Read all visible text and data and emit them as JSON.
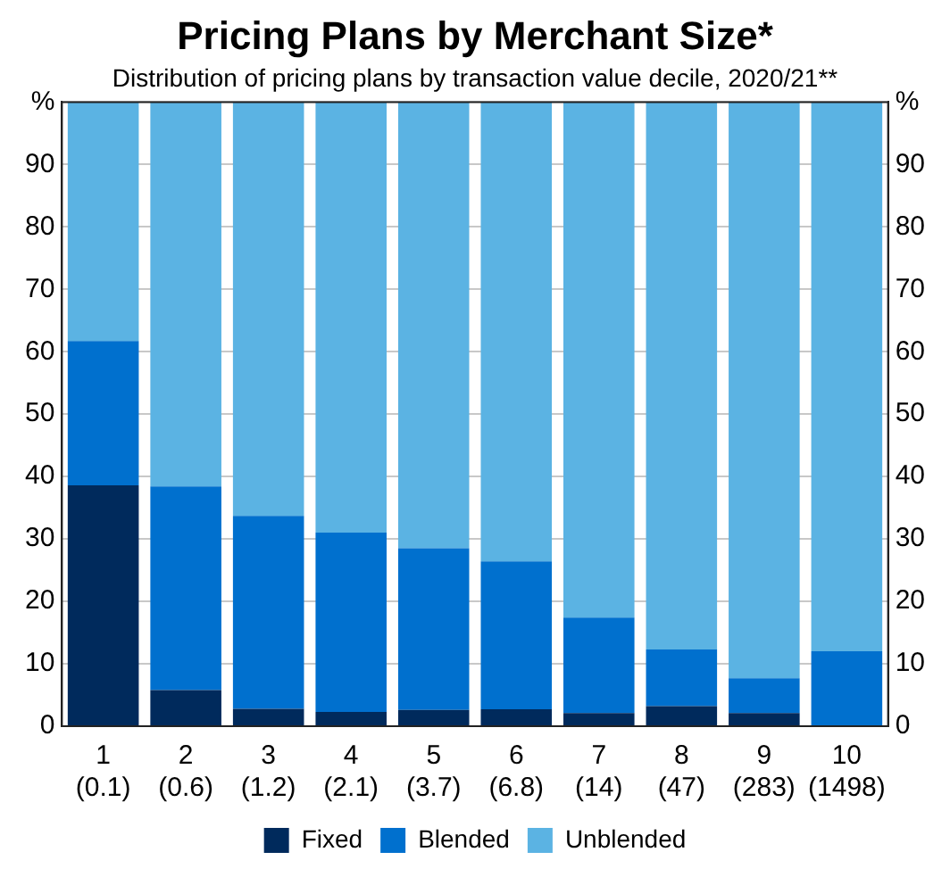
{
  "chart_data": {
    "type": "bar",
    "title": "Pricing Plans by Merchant Size*",
    "subtitle": "Distribution of pricing plans by transaction value decile, 2020/21**",
    "categories": [
      "1\n(0.1)",
      "2\n(0.6)",
      "3\n(1.2)",
      "4\n(2.1)",
      "5\n(3.7)",
      "6\n(6.8)",
      "7\n(14)",
      "8\n(47)",
      "9\n(283)",
      "10\n(1498)"
    ],
    "stacked": true,
    "series": [
      {
        "name": "Fixed",
        "color": "#002a5c",
        "values": [
          38.6,
          5.8,
          2.8,
          2.3,
          2.6,
          2.7,
          2.1,
          3.2,
          2.1,
          0
        ]
      },
      {
        "name": "Blended",
        "color": "#0070ce",
        "values": [
          23.1,
          32.6,
          30.9,
          28.7,
          25.9,
          23.7,
          15.3,
          9.1,
          5.6,
          12.0
        ]
      },
      {
        "name": "Unblended",
        "color": "#5bb3e3",
        "values": [
          38.3,
          61.6,
          66.3,
          69.0,
          71.5,
          73.6,
          82.6,
          87.7,
          92.3,
          88.0
        ]
      }
    ],
    "ylim": [
      0,
      100
    ],
    "yticks": [
      0,
      10,
      20,
      30,
      40,
      50,
      60,
      70,
      80,
      90,
      {
        "value": 100,
        "label": "%"
      }
    ],
    "y2lim": [
      0,
      100
    ],
    "y2ticks": [
      0,
      10,
      20,
      30,
      40,
      50,
      60,
      70,
      80,
      90,
      {
        "value": 100,
        "label": "%"
      }
    ],
    "grid": "y",
    "legend": "bottom"
  }
}
